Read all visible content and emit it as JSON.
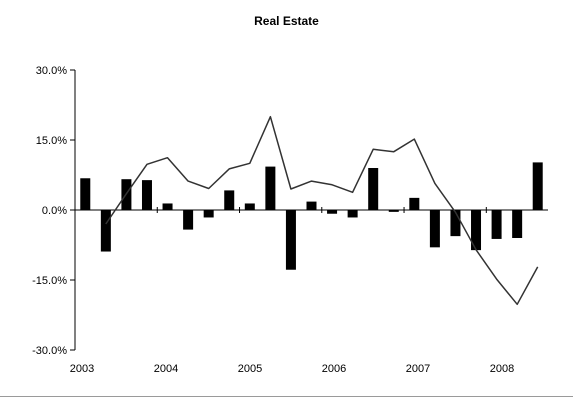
{
  "chart_data": {
    "type": "bar",
    "title": "Real Estate",
    "xlabel": "",
    "ylabel": "",
    "ylim": [
      -30,
      30
    ],
    "yticks": [
      30,
      15,
      0,
      -15,
      -30
    ],
    "ytick_labels": [
      "30.0%",
      "15.0%",
      "0.0%",
      "-15.0%",
      "-30.0%"
    ],
    "xtick_labels": [
      "2003",
      "2004",
      "2005",
      "2006",
      "2007",
      "2008"
    ],
    "grid": false,
    "legend": "none",
    "series": [
      {
        "type": "bar",
        "color": "#000000",
        "values": [
          6.8,
          -8.9,
          6.6,
          6.4,
          1.4,
          -4.2,
          -1.6,
          4.2,
          1.4,
          9.3,
          -12.8,
          1.8,
          -0.8,
          -1.6,
          9.0,
          -0.4,
          2.6,
          -8.0,
          -5.6,
          -8.6,
          -6.2,
          -6.0,
          10.2
        ]
      },
      {
        "type": "line",
        "color": "#333333",
        "values": [
          null,
          -3.0,
          3.5,
          9.8,
          11.2,
          6.2,
          4.6,
          8.8,
          10.0,
          20.0,
          4.5,
          6.2,
          5.4,
          3.8,
          13.0,
          12.5,
          15.2,
          5.7,
          -0.5,
          -8.5,
          -14.8,
          -20.2,
          -12.2
        ]
      }
    ]
  }
}
